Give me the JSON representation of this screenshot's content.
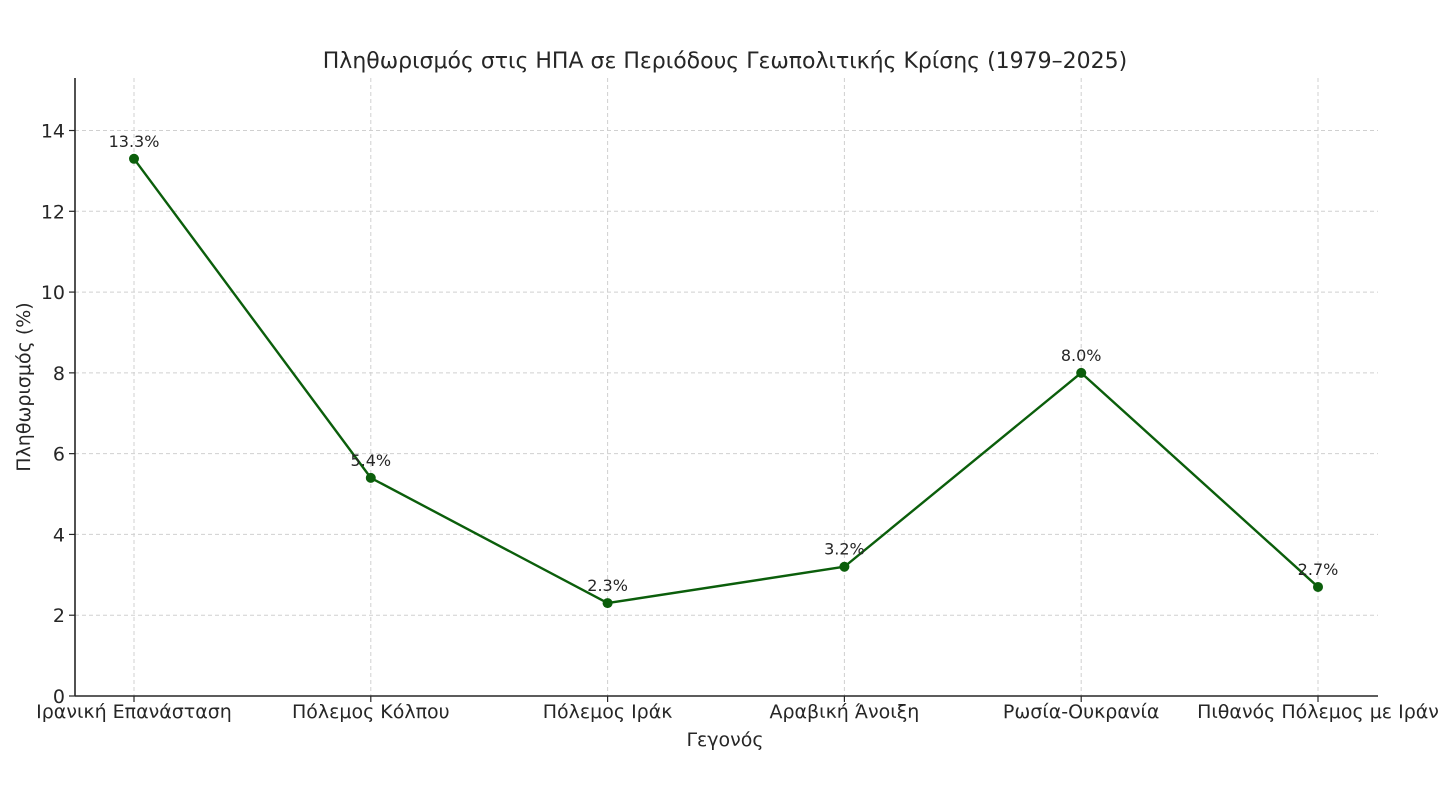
{
  "chart_data": {
    "type": "line",
    "title": "Πληθωρισμός στις ΗΠΑ σε Περιόδους Γεωπολιτικής Κρίσης (1979–2025)",
    "xlabel": "Γεγονός",
    "ylabel": "Πληθωρισμός (%)",
    "categories": [
      "Ιρανική Επανάσταση",
      "Πόλεμος Κόλπου",
      "Πόλεμος Ιράκ",
      "Αραβική Άνοιξη",
      "Ρωσία-Ουκρανία",
      "Πιθανός Πόλεμος με Ιράν"
    ],
    "series": [
      {
        "values": [
          13.3,
          5.4,
          2.3,
          3.2,
          8.0,
          2.7
        ],
        "data_labels": [
          "13.3%",
          "5.4%",
          "2.3%",
          "3.2%",
          "8.0%",
          "2.7%"
        ],
        "color": "#0b5e0b",
        "marker": "circle"
      }
    ],
    "ylim": [
      0,
      15.3
    ],
    "yticks": [
      0,
      2,
      4,
      6,
      8,
      10,
      12,
      14
    ],
    "grid": true,
    "legend": "none"
  }
}
